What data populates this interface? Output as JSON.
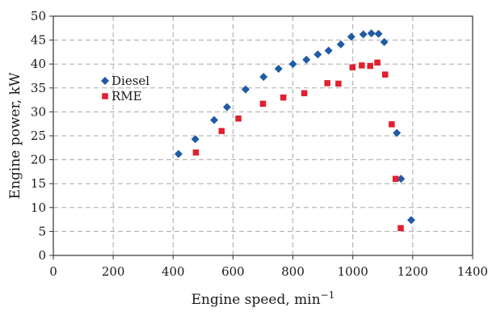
{
  "chart_data": {
    "type": "scatter",
    "xlabel": "Engine speed, min",
    "xlabel_superscript": "−1",
    "ylabel": "Engine power, kW",
    "xlim": [
      0,
      1400
    ],
    "ylim": [
      0,
      50
    ],
    "x_ticks": [
      0,
      200,
      400,
      600,
      800,
      1000,
      1200,
      1400
    ],
    "y_ticks": [
      0,
      5,
      10,
      15,
      20,
      25,
      30,
      35,
      40,
      45,
      50
    ],
    "grid": true,
    "legend_position": "left",
    "series": [
      {
        "name": "Diesel",
        "marker": "diamond",
        "color": "#1f5aa6",
        "points": [
          {
            "x": 418,
            "y": 21.2
          },
          {
            "x": 474,
            "y": 24.3
          },
          {
            "x": 537,
            "y": 28.3
          },
          {
            "x": 580,
            "y": 31.0
          },
          {
            "x": 642,
            "y": 34.7
          },
          {
            "x": 702,
            "y": 37.3
          },
          {
            "x": 752,
            "y": 39.0
          },
          {
            "x": 800,
            "y": 40.0
          },
          {
            "x": 845,
            "y": 40.9
          },
          {
            "x": 883,
            "y": 42.0
          },
          {
            "x": 919,
            "y": 42.8
          },
          {
            "x": 960,
            "y": 44.1
          },
          {
            "x": 995,
            "y": 45.7
          },
          {
            "x": 1035,
            "y": 46.2
          },
          {
            "x": 1062,
            "y": 46.4
          },
          {
            "x": 1086,
            "y": 46.3
          },
          {
            "x": 1105,
            "y": 44.6
          },
          {
            "x": 1147,
            "y": 25.6
          },
          {
            "x": 1161,
            "y": 16.0
          },
          {
            "x": 1195,
            "y": 7.4
          }
        ]
      },
      {
        "name": "RME",
        "marker": "square",
        "color": "#e0202e",
        "points": [
          {
            "x": 476,
            "y": 21.5
          },
          {
            "x": 562,
            "y": 26.0
          },
          {
            "x": 618,
            "y": 28.6
          },
          {
            "x": 700,
            "y": 31.7
          },
          {
            "x": 768,
            "y": 33.0
          },
          {
            "x": 838,
            "y": 33.9
          },
          {
            "x": 915,
            "y": 36.0
          },
          {
            "x": 952,
            "y": 35.9
          },
          {
            "x": 999,
            "y": 39.3
          },
          {
            "x": 1030,
            "y": 39.7
          },
          {
            "x": 1058,
            "y": 39.6
          },
          {
            "x": 1082,
            "y": 40.3
          },
          {
            "x": 1108,
            "y": 37.8
          },
          {
            "x": 1130,
            "y": 27.4
          },
          {
            "x": 1143,
            "y": 16.0
          },
          {
            "x": 1160,
            "y": 5.7
          }
        ]
      }
    ]
  }
}
